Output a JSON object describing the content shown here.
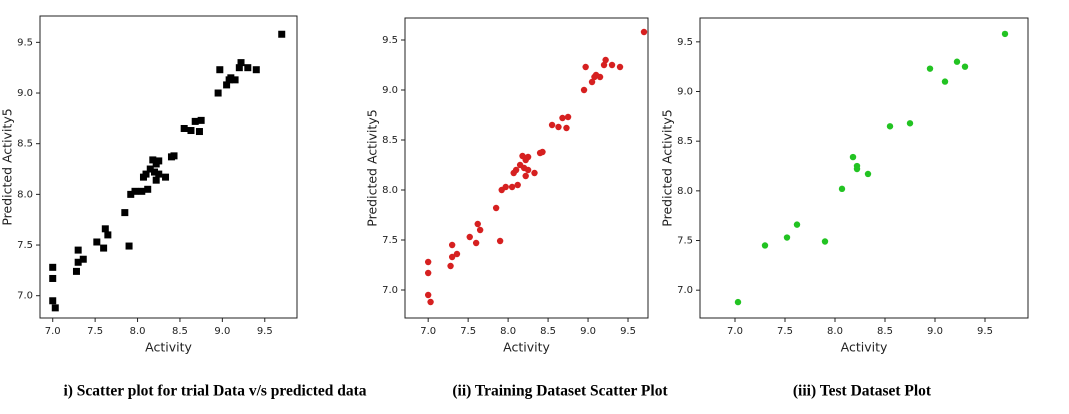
{
  "chart_data": [
    {
      "type": "scatter",
      "marker": "square",
      "color": "#000000",
      "x_label": "Activity",
      "y_label": "Predicted Activity5",
      "caption": "i) Scatter plot for trial  Data v/s predicted data",
      "xlim": [
        6.85,
        9.88
      ],
      "ylim": [
        6.78,
        9.76
      ],
      "xticks": [
        {
          "value": 7,
          "label": "7.0"
        },
        7.5,
        {
          "value": 8,
          "label": "8.0"
        },
        8.5,
        {
          "value": 9,
          "label": "9.0"
        },
        9.5
      ],
      "yticks": [
        {
          "value": 7,
          "label": "7.0"
        },
        7.5,
        {
          "value": 8,
          "label": "8.0"
        },
        8.5,
        {
          "value": 9,
          "label": "9.0"
        },
        9.5
      ],
      "x": [
        7.0,
        7.0,
        7.0,
        7.03,
        7.28,
        7.3,
        7.3,
        7.36,
        7.52,
        7.6,
        7.62,
        7.65,
        7.85,
        7.9,
        7.92,
        7.97,
        8.05,
        8.07,
        8.1,
        8.12,
        8.15,
        8.18,
        8.2,
        8.22,
        8.22,
        8.25,
        8.25,
        8.33,
        8.4,
        8.43,
        8.55,
        8.63,
        8.68,
        8.73,
        8.75,
        8.95,
        8.97,
        9.05,
        9.08,
        9.1,
        9.15,
        9.2,
        9.22,
        9.3,
        9.4,
        9.7
      ],
      "values": [
        7.28,
        7.17,
        6.95,
        6.88,
        7.24,
        7.33,
        7.45,
        7.36,
        7.53,
        7.47,
        7.66,
        7.6,
        7.82,
        7.49,
        8.0,
        8.03,
        8.03,
        8.17,
        8.2,
        8.05,
        8.25,
        8.34,
        8.22,
        8.14,
        8.3,
        8.2,
        8.33,
        8.17,
        8.37,
        8.38,
        8.65,
        8.63,
        8.72,
        8.62,
        8.73,
        9.0,
        9.23,
        9.08,
        9.13,
        9.15,
        9.13,
        9.25,
        9.3,
        9.25,
        9.23,
        9.58
      ]
    },
    {
      "type": "scatter",
      "marker": "circle",
      "color": "#d62020",
      "x_label": "Activity",
      "y_label": "Predicted Activity5",
      "caption": "(ii) Training Dataset  Scatter Plot",
      "xlim": [
        6.71,
        9.75
      ],
      "ylim": [
        6.72,
        9.72
      ],
      "xticks": [
        {
          "value": 7,
          "label": "7.0"
        },
        7.5,
        {
          "value": 8,
          "label": "8.0"
        },
        8.5,
        {
          "value": 9,
          "label": "9.0"
        },
        9.5
      ],
      "yticks": [
        {
          "value": 7,
          "label": "7.0"
        },
        7.5,
        {
          "value": 8,
          "label": "8.0"
        },
        8.5,
        {
          "value": 9,
          "label": "9.0"
        },
        9.5
      ],
      "x": [
        7.0,
        7.0,
        7.0,
        7.03,
        7.28,
        7.3,
        7.3,
        7.36,
        7.52,
        7.6,
        7.62,
        7.65,
        7.85,
        7.9,
        7.92,
        7.97,
        8.05,
        8.07,
        8.1,
        8.12,
        8.15,
        8.18,
        8.2,
        8.22,
        8.22,
        8.25,
        8.25,
        8.33,
        8.4,
        8.43,
        8.55,
        8.63,
        8.68,
        8.73,
        8.75,
        8.95,
        8.97,
        9.05,
        9.08,
        9.1,
        9.15,
        9.2,
        9.22,
        9.3,
        9.4,
        9.7
      ],
      "values": [
        7.28,
        7.17,
        6.95,
        6.88,
        7.24,
        7.33,
        7.45,
        7.36,
        7.53,
        7.47,
        7.66,
        7.6,
        7.82,
        7.49,
        8.0,
        8.03,
        8.03,
        8.17,
        8.2,
        8.05,
        8.25,
        8.34,
        8.22,
        8.14,
        8.3,
        8.2,
        8.33,
        8.17,
        8.37,
        8.38,
        8.65,
        8.63,
        8.72,
        8.62,
        8.73,
        9.0,
        9.23,
        9.08,
        9.13,
        9.15,
        9.13,
        9.25,
        9.3,
        9.25,
        9.23,
        9.58
      ]
    },
    {
      "type": "scatter",
      "marker": "circle",
      "color": "#22c322",
      "x_label": "Activity",
      "y_label": "Predicted Activity5",
      "caption": "(iii) Test Dataset Plot",
      "xlim": [
        6.65,
        9.93
      ],
      "ylim": [
        6.72,
        9.74
      ],
      "xticks": [
        {
          "value": 7,
          "label": "7.0"
        },
        7.5,
        {
          "value": 8,
          "label": "8.0"
        },
        8.5,
        {
          "value": 9,
          "label": "9.0"
        },
        9.5
      ],
      "yticks": [
        {
          "value": 7,
          "label": "7.0"
        },
        7.5,
        {
          "value": 8,
          "label": "8.0"
        },
        8.5,
        {
          "value": 9,
          "label": "9.0"
        },
        9.5
      ],
      "x": [
        7.03,
        7.3,
        7.52,
        7.62,
        7.9,
        8.07,
        8.18,
        8.22,
        8.22,
        8.33,
        8.55,
        8.75,
        8.95,
        9.1,
        9.22,
        9.3,
        9.7
      ],
      "values": [
        6.88,
        7.45,
        7.53,
        7.66,
        7.49,
        8.02,
        8.34,
        8.22,
        8.25,
        8.17,
        8.65,
        8.68,
        9.23,
        9.1,
        9.3,
        9.25,
        9.58
      ]
    }
  ]
}
